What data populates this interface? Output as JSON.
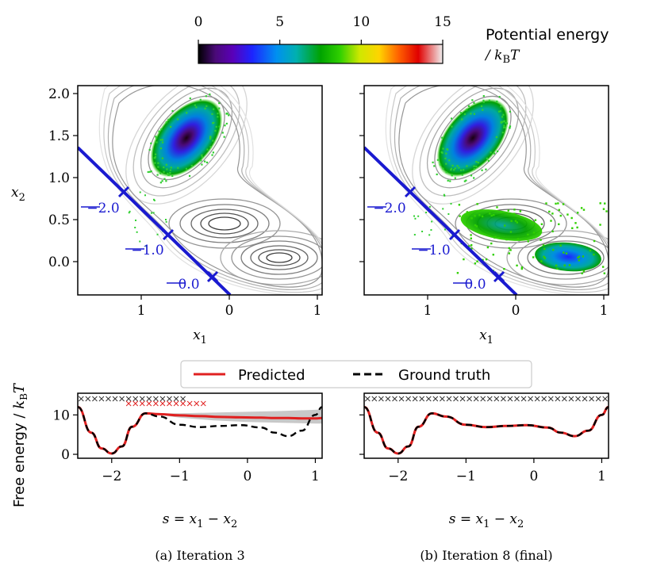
{
  "colorbar": {
    "ticks": [
      "0",
      "5",
      "10",
      "15"
    ],
    "label_line1": "Potential energy",
    "label_line2": "/ kBT",
    "range": [
      0,
      15
    ]
  },
  "panels": [
    {
      "caption": "(a) Iteration 3",
      "cv_labels": [
        "−2.0",
        "−1.0",
        "0.0"
      ],
      "sampled_second_basin": false
    },
    {
      "caption": "(b) Iteration 8 (final)",
      "cv_labels": [
        "−2.0",
        "−1.0",
        "0.0"
      ],
      "sampled_second_basin": true
    }
  ],
  "top_axes": {
    "xlabel": "x1",
    "ylabel": "x2",
    "xticks": [
      "1",
      "0",
      "1"
    ],
    "yticks": [
      "2.0",
      "1.5",
      "1.0",
      "0.5",
      "0.0"
    ]
  },
  "bottom_axes": {
    "ylabel": "Free energy / kBT",
    "xlabel": "s = x1 − x2",
    "xticks": [
      "−2",
      "−1",
      "0",
      "1"
    ],
    "yticks": [
      "0",
      "10"
    ]
  },
  "legend": {
    "predicted": "Predicted",
    "ground_truth": "Ground truth"
  },
  "chart_data": [
    {
      "type": "line",
      "title": "(a) Iteration 3",
      "xlabel": "s = x1 − x2",
      "ylabel": "Free energy / kBT",
      "xlim": [
        -2.5,
        1.1
      ],
      "ylim": [
        -1,
        15.5
      ],
      "x": [
        -2.5,
        -2.3,
        -2.15,
        -2.0,
        -1.85,
        -1.7,
        -1.5,
        -1.3,
        -1.0,
        -0.7,
        -0.4,
        -0.1,
        0.2,
        0.4,
        0.6,
        0.8,
        1.0,
        1.1
      ],
      "series": [
        {
          "name": "Predicted",
          "values": [
            12,
            5.5,
            1.5,
            0.2,
            2.0,
            7.0,
            10.4,
            10.2,
            9.9,
            9.7,
            9.5,
            9.4,
            9.3,
            9.2,
            9.2,
            9.1,
            9.1,
            9.2
          ]
        },
        {
          "name": "Ground truth",
          "values": [
            12,
            5.5,
            1.5,
            0.2,
            2.0,
            7.0,
            10.4,
            9.6,
            7.5,
            6.9,
            7.2,
            7.4,
            6.8,
            5.5,
            4.6,
            6.0,
            10.0,
            12.0
          ]
        }
      ],
      "uncertainty_band": {
        "x": [
          -1.3,
          -1.0,
          -0.5,
          0.0,
          0.5,
          1.0,
          1.1
        ],
        "lower": [
          10.0,
          9.3,
          8.6,
          8.2,
          8.0,
          7.8,
          7.8
        ],
        "upper": [
          10.4,
          10.4,
          10.6,
          10.8,
          11.0,
          11.3,
          11.4
        ]
      },
      "black_samples_x": [
        -2.45,
        -2.35,
        -2.25,
        -2.15,
        -2.05,
        -1.95,
        -1.85,
        -1.75,
        -1.65,
        -1.55,
        -1.45,
        -1.35,
        -1.25,
        -1.15,
        -1.05,
        -0.95
      ],
      "red_samples_x": [
        -1.75,
        -1.65,
        -1.55,
        -1.45,
        -1.35,
        -1.25,
        -1.15,
        -1.05,
        -0.95,
        -0.85,
        -0.75,
        -0.65
      ]
    },
    {
      "type": "line",
      "title": "(b) Iteration 8 (final)",
      "xlabel": "s = x1 − x2",
      "ylabel": "Free energy / kBT",
      "xlim": [
        -2.5,
        1.1
      ],
      "ylim": [
        -1,
        15.5
      ],
      "x": [
        -2.5,
        -2.3,
        -2.15,
        -2.0,
        -1.85,
        -1.7,
        -1.5,
        -1.3,
        -1.0,
        -0.7,
        -0.4,
        -0.1,
        0.2,
        0.4,
        0.6,
        0.8,
        1.0,
        1.1
      ],
      "series": [
        {
          "name": "Predicted",
          "values": [
            12,
            5.5,
            1.5,
            0.2,
            2.0,
            7.0,
            10.4,
            9.6,
            7.5,
            6.9,
            7.2,
            7.4,
            6.8,
            5.5,
            4.6,
            6.0,
            10.0,
            12.0
          ]
        },
        {
          "name": "Ground truth",
          "values": [
            12,
            5.5,
            1.5,
            0.2,
            2.0,
            7.0,
            10.4,
            9.6,
            7.5,
            6.9,
            7.2,
            7.4,
            6.8,
            5.5,
            4.6,
            6.0,
            10.0,
            12.0
          ]
        }
      ],
      "black_samples_x": [
        -2.45,
        -2.35,
        -2.25,
        -2.15,
        -2.05,
        -1.95,
        -1.85,
        -1.75,
        -1.65,
        -1.55,
        -1.45,
        -1.35,
        -1.25,
        -1.15,
        -1.05,
        -0.95,
        -0.85,
        -0.75,
        -0.65,
        -0.55,
        -0.45,
        -0.35,
        -0.25,
        -0.15,
        -0.05,
        0.05,
        0.15,
        0.25,
        0.35,
        0.45,
        0.55,
        0.65,
        0.75,
        0.85,
        0.95,
        1.05
      ],
      "red_samples_x": []
    }
  ]
}
